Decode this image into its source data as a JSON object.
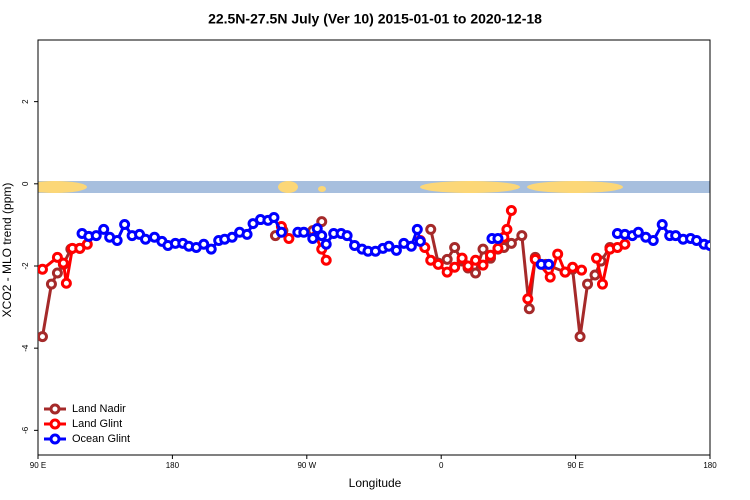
{
  "chart_data": {
    "type": "line",
    "title": "22.5N-27.5N July (Ver 10)   2015-01-01 to 2020-12-18",
    "xlabel": "Longitude",
    "ylabel": "XCO2 - MLO trend (ppm)",
    "xlim": [
      90,
      540
    ],
    "ylim": [
      -6.6,
      3.5
    ],
    "xticks": [
      {
        "value": 90,
        "label": "90 E"
      },
      180,
      {
        "value": 270,
        "label": "90 W"
      },
      {
        "value": 360,
        "label": "0"
      },
      {
        "value": 450,
        "label": "90 E"
      },
      {
        "value": 540,
        "label": "180"
      }
    ],
    "yticks": [
      2,
      0,
      -2,
      -4,
      -6
    ],
    "legend": "bottom-left",
    "series": [
      {
        "name": "Land Nadir",
        "color": "#a52a2a",
        "x": [
          93,
          99,
          103,
          107,
          112,
          118,
          null,
          249,
          254,
          null,
          274,
          280,
          null,
          353,
          358,
          364,
          369,
          374,
          378,
          383,
          388,
          393,
          398,
          402,
          407,
          414,
          419,
          423,
          430,
          443,
          448,
          453,
          458,
          463,
          467,
          473
        ],
        "values": [
          -3.72,
          -2.44,
          -2.17,
          -1.96,
          -1.59,
          -1.57,
          null,
          -1.26,
          -1.14,
          null,
          -1.14,
          -0.92,
          null,
          -1.11,
          -1.93,
          -1.84,
          -1.55,
          -1.88,
          -2.05,
          -2.17,
          -1.59,
          -1.81,
          -1.59,
          -1.55,
          -1.45,
          -1.26,
          -3.04,
          -1.79,
          -1.96,
          -2.15,
          -2.08,
          -3.72,
          -2.44,
          -2.22,
          -1.88,
          -1.55
        ]
      },
      {
        "name": "Land Glint",
        "color": "#ff0000",
        "x": [
          93,
          103,
          107,
          109,
          113,
          118,
          123,
          null,
          253,
          258,
          null,
          276,
          280,
          283,
          null,
          346,
          349,
          353,
          358,
          364,
          369,
          374,
          378,
          383,
          388,
          393,
          398,
          402,
          404,
          407,
          null,
          418,
          423,
          433,
          438,
          443,
          448,
          454,
          null,
          464,
          468,
          473,
          478,
          483
        ],
        "values": [
          -2.08,
          -1.79,
          -1.93,
          -2.42,
          -1.57,
          -1.57,
          -1.47,
          null,
          -1.04,
          -1.33,
          null,
          -1.28,
          -1.59,
          -1.86,
          null,
          -1.38,
          -1.55,
          -1.86,
          -1.96,
          -2.15,
          -2.03,
          -1.81,
          -2.0,
          -1.86,
          -1.98,
          -1.74,
          -1.57,
          -1.3,
          -1.11,
          -0.65,
          null,
          -2.8,
          -1.84,
          -2.27,
          -1.71,
          -2.15,
          -2.03,
          -2.1,
          null,
          -1.81,
          -2.44,
          -1.59,
          -1.55,
          -1.47
        ]
      },
      {
        "name": "Ocean Glint",
        "color": "#0000ff",
        "x": [
          119.5,
          124,
          129,
          134,
          138,
          143,
          148,
          153,
          158,
          162,
          168,
          173,
          177,
          182,
          187,
          191,
          196,
          201,
          206,
          211,
          215,
          220,
          225,
          230,
          234,
          239,
          244,
          248,
          253,
          null,
          264,
          268,
          274,
          277,
          280,
          283,
          288,
          293,
          297,
          302,
          307,
          311,
          316,
          321,
          325,
          330,
          335,
          340,
          344,
          346,
          null,
          394,
          398,
          null,
          427,
          432,
          null,
          478,
          483,
          488,
          492,
          497,
          502,
          508,
          513,
          517,
          522,
          527,
          531,
          536,
          540
        ],
        "values": [
          -1.21,
          -1.28,
          -1.26,
          -1.11,
          -1.3,
          -1.38,
          -0.99,
          -1.26,
          -1.23,
          -1.35,
          -1.3,
          -1.4,
          -1.5,
          -1.45,
          -1.45,
          -1.52,
          -1.55,
          -1.47,
          -1.59,
          -1.38,
          -1.35,
          -1.3,
          -1.18,
          -1.23,
          -0.97,
          -0.87,
          -0.89,
          -0.82,
          -1.18,
          null,
          -1.18,
          -1.18,
          -1.33,
          -1.09,
          -1.26,
          -1.47,
          -1.21,
          -1.21,
          -1.26,
          -1.5,
          -1.59,
          -1.64,
          -1.64,
          -1.57,
          -1.52,
          -1.62,
          -1.45,
          -1.52,
          -1.11,
          -1.4,
          null,
          -1.33,
          -1.33,
          null,
          -1.96,
          -1.96,
          null,
          -1.21,
          -1.23,
          -1.26,
          -1.18,
          -1.3,
          -1.38,
          -0.99,
          -1.26,
          -1.26,
          -1.35,
          -1.33,
          -1.38,
          -1.47,
          -1.5
        ]
      }
    ]
  }
}
